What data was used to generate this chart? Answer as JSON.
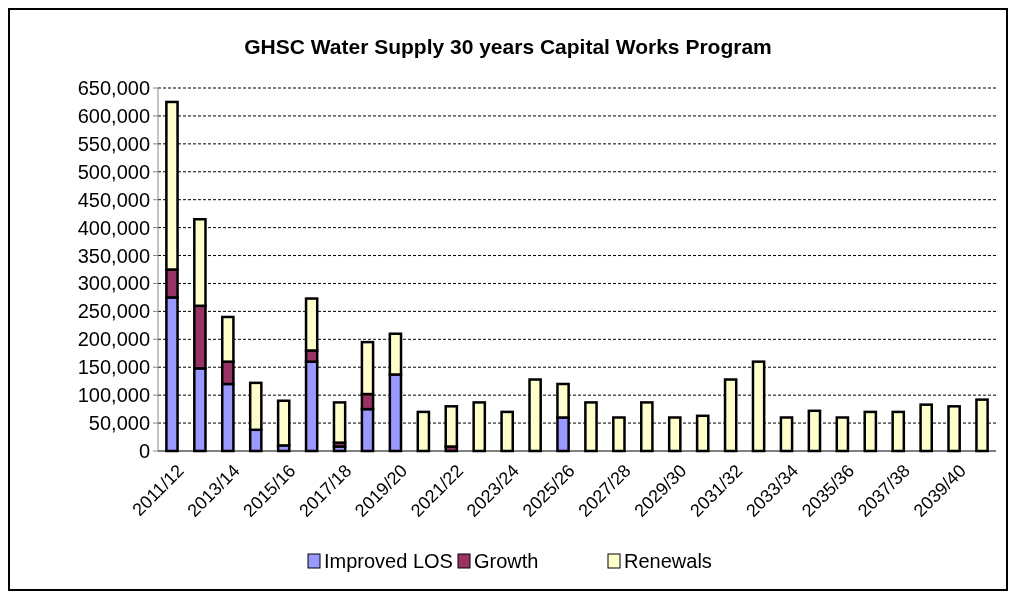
{
  "chart_data": {
    "type": "bar",
    "stacked": true,
    "title": "GHSC Water Supply 30 years Capital Works Program",
    "categories": [
      "2011/12",
      null,
      "2013/14",
      null,
      "2015/16",
      null,
      "2017/18",
      null,
      "2019/20",
      null,
      "2021/22",
      null,
      "2023/24",
      null,
      "2025/26",
      null,
      "2027/28",
      null,
      "2029/30",
      null,
      "2031/32",
      null,
      "2033/34",
      null,
      "2035/36",
      null,
      "2037/38",
      null,
      "2039/40",
      null
    ],
    "series": [
      {
        "name": "Improved LOS",
        "color": "#9999ff",
        "values": [
          275000,
          148000,
          120000,
          38000,
          10000,
          160000,
          8000,
          75000,
          137000,
          0,
          null,
          0,
          0,
          0,
          60000,
          0,
          0,
          0,
          0,
          0,
          0,
          0,
          0,
          0,
          0,
          0,
          0,
          0,
          0,
          0
        ]
      },
      {
        "name": "Growth",
        "color": "#993366",
        "values": [
          50000,
          112000,
          40000,
          0,
          null,
          20000,
          7000,
          27000,
          0,
          0,
          8000,
          0,
          0,
          0,
          0,
          0,
          0,
          0,
          0,
          0,
          0,
          0,
          0,
          0,
          0,
          0,
          0,
          0,
          0,
          0
        ]
      },
      {
        "name": "Renewals",
        "color": "#ffffcc",
        "values": [
          300000,
          155000,
          80000,
          84000,
          80000,
          93000,
          72000,
          93000,
          73000,
          70000,
          72000,
          87000,
          70000,
          128000,
          60000,
          87000,
          60000,
          87000,
          60000,
          63000,
          128000,
          160000,
          60000,
          72000,
          60000,
          70000,
          70000,
          83000,
          80000,
          92000
        ]
      }
    ],
    "ylim": [
      0,
      650000
    ],
    "yticks": [
      {
        "value": 0,
        "label": "0"
      },
      {
        "value": 50000,
        "label": "50,000"
      },
      {
        "value": 100000,
        "label": "100,000"
      },
      {
        "value": 150000,
        "label": "150,000"
      },
      {
        "value": 200000,
        "label": "200,000"
      },
      {
        "value": 250000,
        "label": "250,000"
      },
      {
        "value": 300000,
        "label": "300,000"
      },
      {
        "value": 350000,
        "label": "350,000"
      },
      {
        "value": 400000,
        "label": "400,000"
      },
      {
        "value": 450000,
        "label": "450,000"
      },
      {
        "value": 500000,
        "label": "500,000"
      },
      {
        "value": 550000,
        "label": "550,000"
      },
      {
        "value": 600000,
        "label": "600,000"
      },
      {
        "value": 650000,
        "label": "650,000"
      }
    ],
    "grid": "y",
    "line_style": "dashed",
    "legend": "bottom"
  }
}
